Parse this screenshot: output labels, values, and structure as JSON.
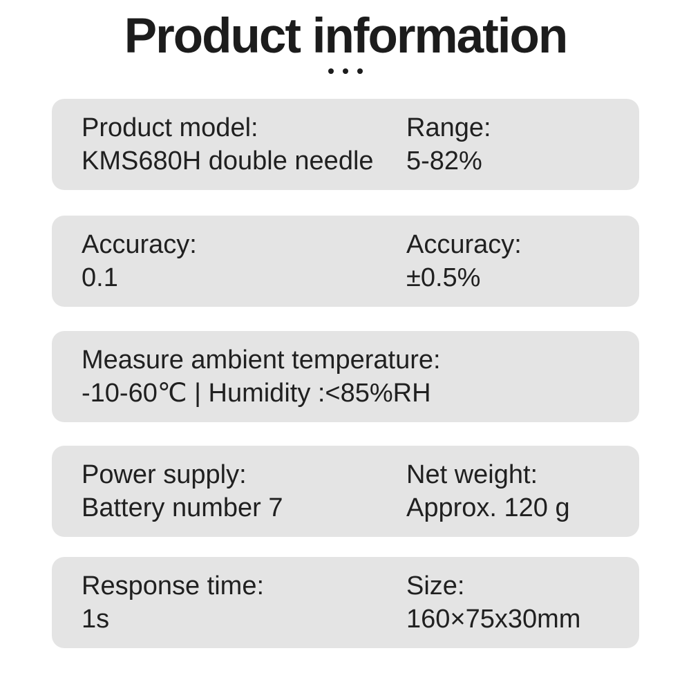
{
  "header": {
    "title": "Product information",
    "ellipsis_icon": "ellipsis-dots"
  },
  "colors": {
    "page_bg": "#ffffff",
    "card_bg": "#e4e4e4",
    "text": "#202020",
    "title": "#1c1c1c"
  },
  "cards": [
    {
      "left": {
        "label": "Product model:",
        "value": "KMS680H double needle"
      },
      "right": {
        "label": "Range:",
        "value": "5-82%"
      }
    },
    {
      "left": {
        "label": "Accuracy:",
        "value": "0.1"
      },
      "right": {
        "label": "Accuracy:",
        "value": "±0.5%"
      }
    },
    {
      "left": {
        "label": "Measure ambient temperature:",
        "value": "-10-60℃ | Humidity :<85%RH"
      }
    },
    {
      "left": {
        "label": "Power supply:",
        "value": "Battery number 7"
      },
      "right": {
        "label": "Net weight:",
        "value": "Approx. 120 g"
      }
    },
    {
      "left": {
        "label": "Response time:",
        "value": "1s"
      },
      "right": {
        "label": "Size:",
        "value": "160×75x30mm"
      }
    }
  ]
}
